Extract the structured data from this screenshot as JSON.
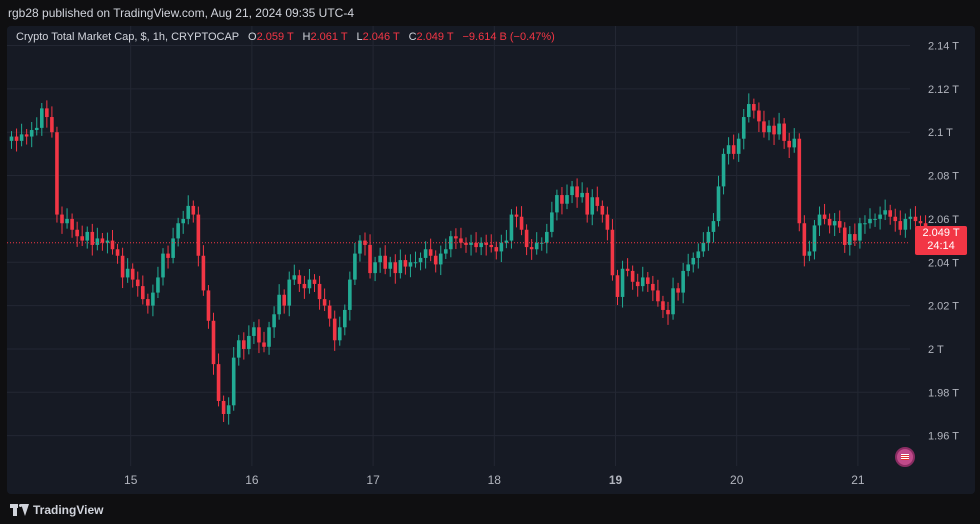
{
  "header": {
    "published": "rgb28 published on TradingView.com, Aug 21, 2024 09:35 UTC-4"
  },
  "legend": {
    "symbol": "Crypto Total Market Cap, $, 1h, CRYPTOCAP",
    "o_label": "O",
    "o_value": "2.059 T",
    "h_label": "H",
    "h_value": "2.061 T",
    "l_label": "L",
    "l_value": "2.046 T",
    "c_label": "C",
    "c_value": "2.049 T",
    "change": "−9.614 B (−0.47%)"
  },
  "price_label": {
    "price": "2.049 T",
    "countdown": "24:14"
  },
  "footer": {
    "brand": "TradingView"
  },
  "colors": {
    "background": "#161a24",
    "grid": "#232733",
    "up": "#22ab94",
    "down": "#f23645",
    "text": "#d1d4dc"
  },
  "icons": {
    "logo": "tradingview-logo-icon",
    "flag": "us-flag-icon"
  },
  "chart_data": {
    "type": "candlestick",
    "title": "Crypto Total Market Cap, $, 1h, CRYPTOCAP",
    "ylabel": "",
    "xlabel": "",
    "ylim": [
      1.946,
      2.149
    ],
    "y_ticks": [
      "2.14 T",
      "2.12 T",
      "2.1 T",
      "2.08 T",
      "2.06 T",
      "2.04 T",
      "2.02 T",
      "2 T",
      "1.98 T",
      "1.96 T"
    ],
    "y_tick_values": [
      2.14,
      2.12,
      2.1,
      2.08,
      2.06,
      2.04,
      2.02,
      2.0,
      1.98,
      1.96
    ],
    "x_ticks": [
      "15",
      "16",
      "17",
      "18",
      "19",
      "20",
      "21"
    ],
    "x_tick_positions": [
      24,
      48,
      72,
      96,
      120,
      144,
      168
    ],
    "x_bold_tick": "19",
    "last_price": 2.049,
    "closes": [
      2.098,
      2.096,
      2.099,
      2.098,
      2.101,
      2.102,
      2.111,
      2.107,
      2.1,
      2.062,
      2.058,
      2.06,
      2.055,
      2.052,
      2.05,
      2.054,
      2.048,
      2.051,
      2.049,
      2.05,
      2.046,
      2.043,
      2.033,
      2.037,
      2.032,
      2.029,
      2.023,
      2.02,
      2.026,
      2.033,
      2.044,
      2.042,
      2.051,
      2.058,
      2.06,
      2.066,
      2.062,
      2.043,
      2.027,
      2.013,
      1.993,
      1.976,
      1.97,
      1.974,
      1.996,
      2.004,
      2.0,
      2.006,
      2.01,
      2.003,
      2.001,
      2.01,
      2.016,
      2.025,
      2.02,
      2.032,
      2.034,
      2.03,
      2.028,
      2.032,
      2.03,
      2.023,
      2.02,
      2.014,
      2.004,
      2.01,
      2.018,
      2.032,
      2.044,
      2.05,
      2.048,
      2.035,
      2.04,
      2.043,
      2.037,
      2.04,
      2.035,
      2.041,
      2.038,
      2.04,
      2.04,
      2.042,
      2.046,
      2.043,
      2.039,
      2.044,
      2.046,
      2.052,
      2.051,
      2.049,
      2.048,
      2.049,
      2.047,
      2.049,
      2.048,
      2.047,
      2.045,
      2.049,
      2.05,
      2.062,
      2.061,
      2.055,
      2.047,
      2.046,
      2.049,
      2.049,
      2.054,
      2.063,
      2.071,
      2.067,
      2.071,
      2.075,
      2.07,
      2.072,
      2.062,
      2.07,
      2.066,
      2.062,
      2.055,
      2.034,
      2.024,
      2.037,
      2.036,
      2.031,
      2.029,
      2.033,
      2.03,
      2.027,
      2.022,
      2.018,
      2.016,
      2.028,
      2.026,
      2.036,
      2.039,
      2.042,
      2.045,
      2.049,
      2.054,
      2.059,
      2.075,
      2.09,
      2.094,
      2.09,
      2.097,
      2.107,
      2.113,
      2.11,
      2.105,
      2.1,
      2.103,
      2.099,
      2.104,
      2.096,
      2.093,
      2.097,
      2.058,
      2.043,
      2.045,
      2.057,
      2.062,
      2.06,
      2.057,
      2.059,
      2.056,
      2.048,
      2.053,
      2.05,
      2.058,
      2.058,
      2.06,
      2.06,
      2.062,
      2.064,
      2.061,
      2.059,
      2.055,
      2.06,
      2.061,
      2.059,
      2.058,
      2.049
    ]
  }
}
